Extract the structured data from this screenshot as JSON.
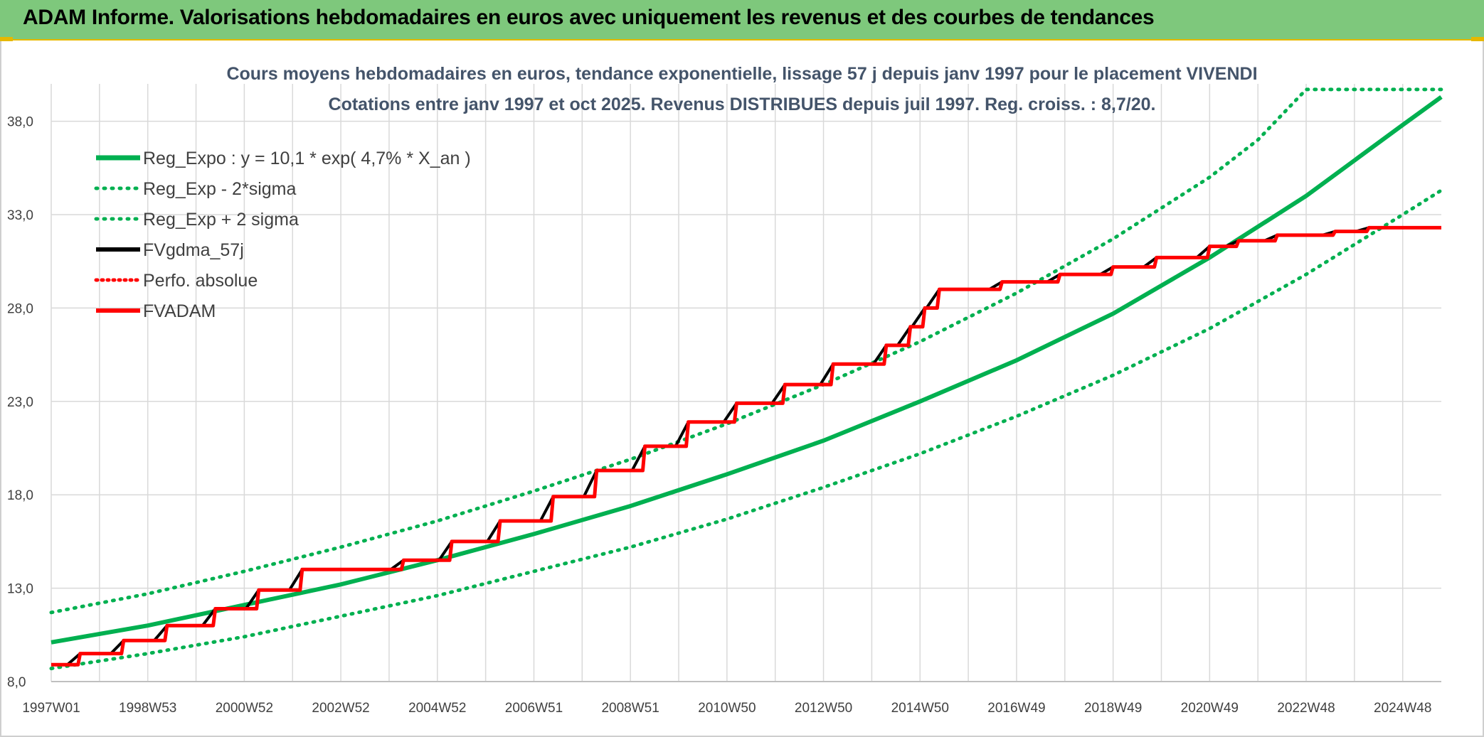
{
  "header": {
    "title": "ADAM Informe. Valorisations hebdomadaires en euros avec uniquement les revenus et des courbes de tendances"
  },
  "colors": {
    "header_bg": "#7ec87c",
    "green": "#00b050",
    "red": "#ff0000",
    "black": "#000000",
    "title": "#44546a"
  },
  "chart_data": {
    "type": "line",
    "title_lines": [
      "Cours moyens hebdomadaires en euros, tendance exponentielle, lissage 57 j depuis janv 1997 pour le placement VIVENDI",
      "Cotations entre janv 1997 et oct 2025. Revenus DISTRIBUES depuis juil 1997. Reg. croiss. : 8,7/20."
    ],
    "x_range": [
      1997.0,
      2025.8
    ],
    "ylim": [
      8.0,
      40.0
    ],
    "y_ticks": [
      "8,0",
      "13,0",
      "18,0",
      "23,0",
      "28,0",
      "33,0",
      "38,0"
    ],
    "y_tick_values": [
      8,
      13,
      18,
      23,
      28,
      33,
      38
    ],
    "x_tick_labels": [
      "1997W01",
      "1998W53",
      "2000W52",
      "2002W52",
      "2004W52",
      "2006W51",
      "2008W51",
      "2010W50",
      "2012W50",
      "2014W50",
      "2016W49",
      "2018W49",
      "2020W49",
      "2022W48",
      "2024W48"
    ],
    "x_tick_values": [
      1997.0,
      1999.0,
      2001.0,
      2003.0,
      2005.0,
      2007.0,
      2009.0,
      2011.0,
      2013.0,
      2015.0,
      2017.0,
      2019.0,
      2021.0,
      2023.0,
      2025.0
    ],
    "grid": true,
    "legend_position": "top-left",
    "series": [
      {
        "name": "Reg_Expo : y = 10,1 * exp( 4,7% * X_an )",
        "style": "solid-green",
        "x": [
          1997.0,
          1999.0,
          2001.0,
          2003.0,
          2005.0,
          2007.0,
          2009.0,
          2011.0,
          2013.0,
          2015.0,
          2017.0,
          2019.0,
          2021.0,
          2023.0,
          2025.0,
          2025.8
        ],
        "y": [
          10.1,
          11.0,
          12.1,
          13.2,
          14.5,
          15.9,
          17.4,
          19.1,
          20.9,
          23.0,
          25.2,
          27.7,
          30.7,
          34.0,
          37.8,
          39.3
        ]
      },
      {
        "name": "Reg_Exp - 2*sigma",
        "style": "dotted-green",
        "x": [
          1997.0,
          1999.0,
          2001.0,
          2003.0,
          2005.0,
          2007.0,
          2009.0,
          2011.0,
          2013.0,
          2015.0,
          2017.0,
          2019.0,
          2021.0,
          2023.0,
          2025.0,
          2025.8
        ],
        "y": [
          8.7,
          9.5,
          10.4,
          11.5,
          12.6,
          13.9,
          15.2,
          16.7,
          18.4,
          20.2,
          22.2,
          24.4,
          26.9,
          29.8,
          33.0,
          34.3
        ]
      },
      {
        "name": "Reg_Exp + 2 sigma",
        "style": "dotted-green",
        "x": [
          1997.0,
          1999.0,
          2001.0,
          2003.0,
          2005.0,
          2007.0,
          2009.0,
          2011.0,
          2013.0,
          2015.0,
          2017.0,
          2019.0,
          2021.0,
          2022.0,
          2023.0,
          2025.8
        ],
        "y": [
          11.7,
          12.7,
          13.9,
          15.2,
          16.6,
          18.2,
          19.9,
          21.8,
          23.9,
          26.2,
          28.8,
          31.7,
          35.0,
          37.0,
          39.7,
          39.7
        ]
      },
      {
        "name": "FVgdma_57j",
        "style": "solid-black-smooth",
        "x": [
          1997.0,
          1997.6,
          1998.5,
          1999.4,
          2000.4,
          2001.3,
          2002.2,
          2004.3,
          2005.3,
          2006.3,
          2007.4,
          2008.3,
          2009.3,
          2010.2,
          2011.2,
          2012.2,
          2013.2,
          2014.3,
          2014.8,
          2015.1,
          2015.4,
          2016.7,
          2017.9,
          2019.0,
          2019.9,
          2021.0,
          2021.6,
          2022.4,
          2023.6,
          2024.3,
          2025.8
        ],
        "y": [
          8.9,
          9.5,
          10.2,
          11.0,
          11.9,
          12.9,
          14.0,
          14.5,
          15.5,
          16.6,
          17.9,
          19.3,
          20.6,
          21.9,
          22.9,
          23.9,
          25.0,
          26.0,
          27.0,
          28.0,
          29.0,
          29.4,
          29.8,
          30.2,
          30.7,
          31.3,
          31.6,
          31.9,
          32.1,
          32.3,
          32.3
        ]
      },
      {
        "name": "Perfo. absolue",
        "style": "dotted-red",
        "x": [],
        "y": []
      },
      {
        "name": "FVADAM",
        "style": "solid-red-step",
        "x": [
          1997.0,
          1997.6,
          1998.5,
          1999.4,
          2000.4,
          2001.3,
          2002.2,
          2004.3,
          2005.3,
          2006.3,
          2007.4,
          2008.3,
          2009.3,
          2010.2,
          2011.2,
          2012.2,
          2013.2,
          2014.3,
          2014.8,
          2015.1,
          2015.4,
          2016.7,
          2017.9,
          2019.0,
          2019.9,
          2021.0,
          2021.6,
          2022.4,
          2023.6,
          2024.3,
          2025.8
        ],
        "y": [
          8.9,
          9.5,
          10.2,
          11.0,
          11.9,
          12.9,
          14.0,
          14.5,
          15.5,
          16.6,
          17.9,
          19.3,
          20.6,
          21.9,
          22.9,
          23.9,
          25.0,
          26.0,
          27.0,
          28.0,
          29.0,
          29.4,
          29.8,
          30.2,
          30.7,
          31.3,
          31.6,
          31.9,
          32.1,
          32.3,
          32.3
        ]
      }
    ]
  }
}
